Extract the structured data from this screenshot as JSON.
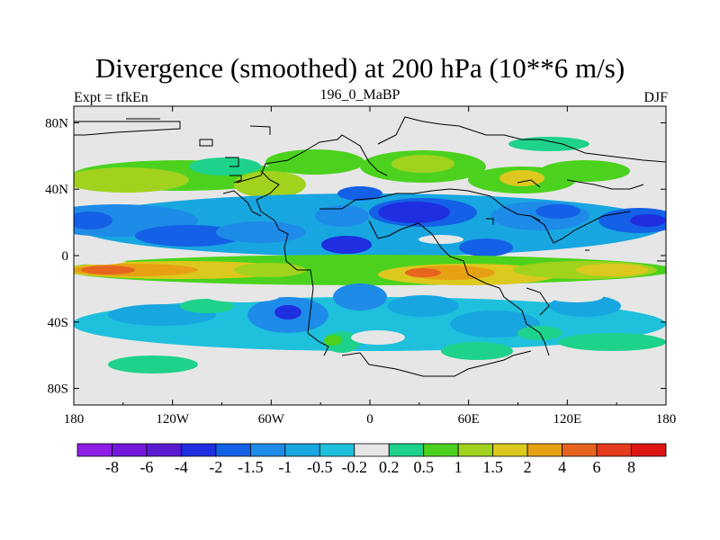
{
  "chart_data": {
    "type": "heatmap",
    "title": "Divergence (smoothed) at 200 hPa (10**6 m/s)",
    "subtitle_left": "Expt = tfkEn",
    "subtitle_center": "196_0_MaBP",
    "subtitle_right": "DJF",
    "x_ticks": [
      "180",
      "120W",
      "60W",
      "0",
      "60E",
      "120E",
      "180"
    ],
    "x_tick_values": [
      -180,
      -120,
      -60,
      0,
      60,
      120,
      180
    ],
    "y_ticks": [
      "80N",
      "40N",
      "0",
      "40S",
      "80S"
    ],
    "y_tick_values": [
      80,
      40,
      0,
      -40,
      -80
    ],
    "xlim": [
      -180,
      180
    ],
    "ylim": [
      -90,
      90
    ],
    "colorbar": {
      "labels": [
        "-8",
        "-6",
        "-4",
        "-2",
        "-1.5",
        "-1",
        "-0.5",
        "-0.2",
        "0.2",
        "0.5",
        "1",
        "1.5",
        "2",
        "4",
        "6",
        "8"
      ],
      "colors": [
        "#8c1ee6",
        "#7418dc",
        "#5a1ad2",
        "#1e2ee0",
        "#1460e6",
        "#1e8be8",
        "#18a6e0",
        "#1ec0dc",
        "#e6e6e6",
        "#1ed28c",
        "#4cd21e",
        "#a0d21e",
        "#dcc81e",
        "#e6a014",
        "#e6641e",
        "#e63a1e",
        "#dc1414"
      ]
    },
    "bands": [
      {
        "lat_from": 75,
        "lat_to": 85,
        "lon_from": -180,
        "lon_to": 180,
        "level": "0.2 to 0.5"
      },
      {
        "lat_from": 30,
        "lat_to": 55,
        "lon_from": -180,
        "lon_to": 180,
        "level": "0.5 to 1.5"
      },
      {
        "lat_from": 0,
        "lat_to": 40,
        "lon_from": -180,
        "lon_to": 180,
        "level": "-0.5 to -4"
      },
      {
        "lat_from": -20,
        "lat_to": 0,
        "lon_from": -180,
        "lon_to": 180,
        "level": "1 to 6"
      },
      {
        "lat_from": -70,
        "lat_to": -20,
        "lon_from": -180,
        "lon_to": 180,
        "level": "-0.2 to -2"
      }
    ]
  }
}
